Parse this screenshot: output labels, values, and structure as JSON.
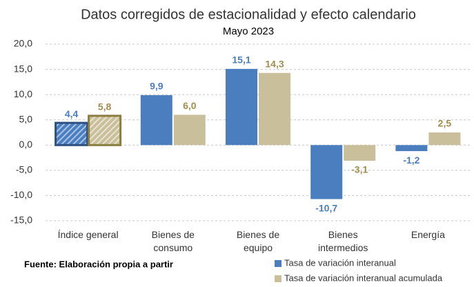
{
  "chart_data": {
    "type": "bar",
    "title": "Datos corregidos de estacionalidad y efecto calendario",
    "subtitle": "Mayo 2023",
    "source": "Fuente: Elaboración propia a partir",
    "categories": [
      "Índice general",
      "Bienes de consumo",
      "Bienes de equipo",
      "Bienes intermedios",
      "Energía"
    ],
    "series": [
      {
        "name": "Tasa de variación interanual",
        "color": "#4a7ebf",
        "label_color": "#4a7ebf",
        "values": [
          4.4,
          9.9,
          15.1,
          -10.7,
          -1.2
        ],
        "value_labels": [
          "4,4",
          "9,9",
          "15,1",
          "-10,7",
          "-1,2"
        ]
      },
      {
        "name": "Tasa de variación interanual acumulada",
        "color": "#c9bf9a",
        "label_color": "#a08c4f",
        "values": [
          5.8,
          6.0,
          14.3,
          -3.1,
          2.5
        ],
        "value_labels": [
          "5,8",
          "6,0",
          "14,3",
          "-3,1",
          "2,5"
        ]
      }
    ],
    "ylim": [
      -15,
      20
    ],
    "yticks": [
      {
        "value": -15,
        "label": "-15,0"
      },
      {
        "value": -10,
        "label": "-10,0"
      },
      {
        "value": -5,
        "label": "-5,0"
      },
      {
        "value": 0,
        "label": "0,0"
      },
      {
        "value": 5,
        "label": "5,0"
      },
      {
        "value": 10,
        "label": "10,0"
      },
      {
        "value": 15,
        "label": "15,0"
      },
      {
        "value": 20,
        "label": "20,0"
      }
    ],
    "grid": true
  }
}
